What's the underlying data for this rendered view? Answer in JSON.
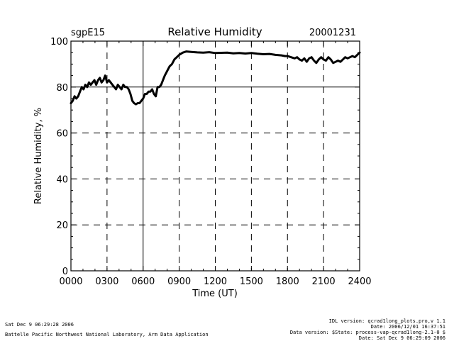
{
  "chart_data": {
    "type": "line",
    "title": "Relative Humidity",
    "site": "sgpE15",
    "date": "20001231",
    "xlabel": "Time (UT)",
    "ylabel": "Relative Humidity, %",
    "xlim": [
      0,
      2400
    ],
    "ylim": [
      0,
      100
    ],
    "x_tick_values": [
      0,
      300,
      600,
      900,
      1200,
      1500,
      1800,
      2100,
      2400
    ],
    "x_tick_labels": [
      "0000",
      "0300",
      "0600",
      "0900",
      "1200",
      "1500",
      "1800",
      "2100",
      "2400"
    ],
    "y_tick_values": [
      0,
      20,
      40,
      60,
      80,
      100
    ],
    "y_tick_labels": [
      "0",
      "20",
      "40",
      "60",
      "80",
      "100"
    ],
    "grid": true,
    "series": [
      {
        "name": "Relative Humidity",
        "x": [
          0,
          15,
          30,
          45,
          60,
          75,
          90,
          105,
          120,
          135,
          150,
          165,
          180,
          195,
          210,
          225,
          240,
          255,
          270,
          285,
          300,
          315,
          330,
          345,
          360,
          375,
          390,
          405,
          420,
          435,
          450,
          465,
          480,
          495,
          510,
          525,
          540,
          555,
          570,
          585,
          600,
          615,
          630,
          645,
          660,
          675,
          690,
          705,
          720,
          735,
          750,
          765,
          780,
          800,
          820,
          840,
          860,
          880,
          900,
          930,
          960,
          1000,
          1050,
          1100,
          1150,
          1200,
          1250,
          1300,
          1350,
          1400,
          1450,
          1500,
          1550,
          1600,
          1650,
          1700,
          1750,
          1780,
          1800,
          1830,
          1860,
          1880,
          1900,
          1920,
          1940,
          1960,
          1980,
          2000,
          2020,
          2040,
          2060,
          2080,
          2100,
          2120,
          2140,
          2160,
          2180,
          2200,
          2220,
          2240,
          2260,
          2280,
          2300,
          2320,
          2340,
          2360,
          2380,
          2400
        ],
        "values": [
          73,
          74,
          76,
          75,
          76,
          78,
          80,
          79,
          81,
          80,
          82,
          81,
          82,
          83,
          81,
          83,
          84,
          82,
          83,
          85,
          82,
          83,
          82,
          81,
          80,
          79,
          81,
          80,
          79,
          81,
          80,
          80,
          79,
          77,
          74,
          73,
          72.5,
          73,
          73,
          74,
          75,
          77,
          77,
          78,
          78,
          79,
          77,
          76,
          80,
          80,
          81,
          83,
          85,
          87,
          89,
          90,
          92,
          93,
          94,
          95,
          95.5,
          95.3,
          95.1,
          95,
          95.2,
          94.8,
          94.9,
          95,
          94.7,
          94.8,
          94.6,
          94.8,
          94.5,
          94.3,
          94.4,
          94,
          93.8,
          93.5,
          93.5,
          93,
          92.5,
          93,
          92,
          91.5,
          92.5,
          91,
          92.5,
          93,
          91.5,
          90.5,
          92,
          93,
          92,
          91.5,
          93,
          92,
          90.5,
          91,
          91.5,
          91,
          92,
          93,
          92.5,
          93,
          93.5,
          93,
          94,
          95
        ]
      }
    ]
  },
  "footer": {
    "run_date": "Sat Dec  9 06:29:28 2006",
    "lab": "Battelle Pacific Northwest National Laboratory, Arm Data Application",
    "idl_version": "IDL version: qcrad1long_plots.pro,v 1.1",
    "file_date": "Date: 2006/12/01 16:37:51",
    "data_version": "Data version: $State: process-vap-qcrad1long-2.1-0 $",
    "plot_date": "Date: Sat Dec  9 06:29:09 2006"
  }
}
